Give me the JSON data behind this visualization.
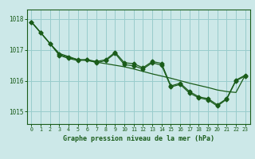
{
  "background_color": "#cce8e8",
  "plot_bg_color": "#cce8e8",
  "grid_color": "#99cccc",
  "line_color": "#1a5c1a",
  "xlim": [
    -0.5,
    23.5
  ],
  "ylim": [
    1014.6,
    1018.3
  ],
  "yticks": [
    1015,
    1016,
    1017,
    1018
  ],
  "xticks": [
    0,
    1,
    2,
    3,
    4,
    5,
    6,
    7,
    8,
    9,
    10,
    11,
    12,
    13,
    14,
    15,
    16,
    17,
    18,
    19,
    20,
    21,
    22,
    23
  ],
  "xlabel": "Graphe pression niveau de la mer (hPa)",
  "trend": [
    1017.9,
    1017.55,
    1017.2,
    1016.88,
    1016.78,
    1016.68,
    1016.65,
    1016.6,
    1016.55,
    1016.5,
    1016.45,
    1016.38,
    1016.3,
    1016.22,
    1016.15,
    1016.08,
    1016.0,
    1015.92,
    1015.85,
    1015.78,
    1015.7,
    1015.65,
    1015.62,
    1016.18
  ],
  "series_mid": [
    1017.9,
    1017.55,
    1017.2,
    1016.85,
    1016.75,
    1016.68,
    1016.68,
    1016.62,
    1016.68,
    1016.92,
    1016.58,
    1016.55,
    1016.42,
    1016.62,
    1016.56,
    1015.83,
    1015.92,
    1015.65,
    1015.48,
    1015.42,
    1015.22,
    1015.42,
    1016.02,
    1016.18
  ],
  "series_jagged": [
    1017.9,
    1017.55,
    1017.2,
    1016.82,
    1016.72,
    1016.65,
    1016.68,
    1016.58,
    1016.65,
    1016.88,
    1016.52,
    1016.48,
    1016.38,
    1016.58,
    1016.5,
    1015.8,
    1015.88,
    1015.6,
    1015.45,
    1015.38,
    1015.18,
    1015.4,
    1016.0,
    1016.15
  ]
}
